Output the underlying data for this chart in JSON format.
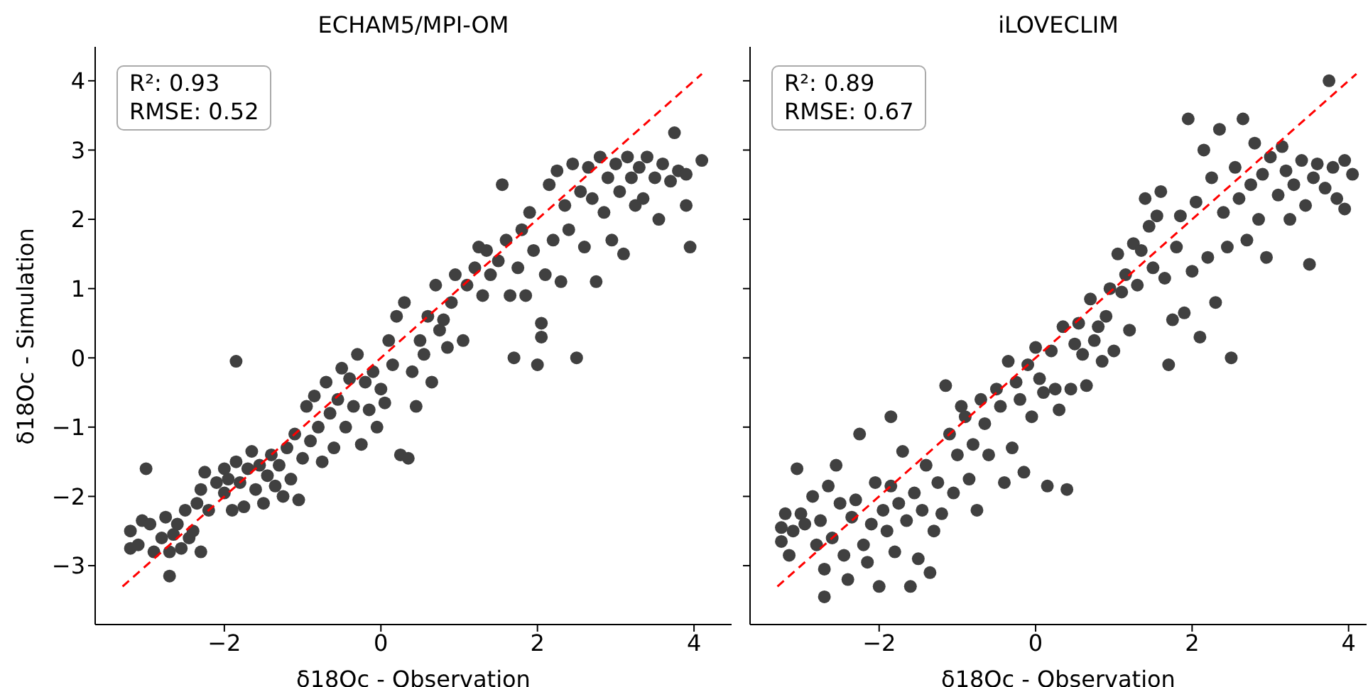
{
  "chart_data": [
    {
      "type": "scatter",
      "title": "ECHAM5/MPI-OM",
      "xlabel": "δ18Oc - Observation",
      "ylabel": "δ18Oc - Simulation",
      "annotations": [
        "R²: 0.93",
        "RMSE: 0.52"
      ],
      "xlim": [
        -3.65,
        4.48
      ],
      "ylim": [
        -3.85,
        4.49
      ],
      "xticks": [
        {
          "value": -2,
          "label": "−2"
        },
        0,
        2,
        4
      ],
      "yticks": [
        {
          "value": -3,
          "label": "−3"
        },
        {
          "value": -2,
          "label": "−2"
        },
        {
          "value": -1,
          "label": "−1"
        },
        0,
        1,
        2,
        3,
        4
      ],
      "series": [
        {
          "marker": "circle",
          "color": "#404040",
          "x": [
            -3.2,
            -3.2,
            -3.1,
            -3.05,
            -3.0,
            -2.95,
            -2.9,
            -2.8,
            -2.75,
            -2.7,
            -2.7,
            -2.65,
            -2.6,
            -2.55,
            -2.5,
            -2.45,
            -2.4,
            -2.35,
            -2.3,
            -2.3,
            -2.25,
            -2.2,
            -2.1,
            -2.0,
            -2.0,
            -1.95,
            -1.9,
            -1.85,
            -1.85,
            -1.8,
            -1.75,
            -1.7,
            -1.65,
            -1.6,
            -1.55,
            -1.5,
            -1.45,
            -1.4,
            -1.35,
            -1.3,
            -1.25,
            -1.2,
            -1.15,
            -1.1,
            -1.05,
            -1.0,
            -0.95,
            -0.9,
            -0.85,
            -0.8,
            -0.75,
            -0.7,
            -0.65,
            -0.6,
            -0.55,
            -0.5,
            -0.45,
            -0.4,
            -0.35,
            -0.3,
            -0.25,
            -0.2,
            -0.15,
            -0.1,
            -0.05,
            0.0,
            0.05,
            0.1,
            0.15,
            0.2,
            0.25,
            0.3,
            0.35,
            0.4,
            0.45,
            0.5,
            0.55,
            0.6,
            0.65,
            0.7,
            0.75,
            0.8,
            0.85,
            0.9,
            0.95,
            1.05,
            1.1,
            1.2,
            1.25,
            1.3,
            1.35,
            1.4,
            1.5,
            1.55,
            1.6,
            1.65,
            1.7,
            1.75,
            1.8,
            1.85,
            1.9,
            1.95,
            2.0,
            2.05,
            2.05,
            2.1,
            2.15,
            2.2,
            2.25,
            2.3,
            2.35,
            2.4,
            2.45,
            2.5,
            2.55,
            2.6,
            2.65,
            2.7,
            2.75,
            2.8,
            2.85,
            2.9,
            2.95,
            3.0,
            3.05,
            3.1,
            3.15,
            3.2,
            3.25,
            3.3,
            3.35,
            3.4,
            3.5,
            3.55,
            3.6,
            3.7,
            3.75,
            3.8,
            3.9,
            3.9,
            3.95,
            4.1
          ],
          "values": [
            -2.5,
            -2.75,
            -2.7,
            -2.35,
            -1.6,
            -2.4,
            -2.8,
            -2.6,
            -2.3,
            -2.8,
            -3.15,
            -2.55,
            -2.4,
            -2.75,
            -2.2,
            -2.6,
            -2.5,
            -2.1,
            -2.8,
            -1.9,
            -1.65,
            -2.2,
            -1.8,
            -1.95,
            -1.6,
            -1.75,
            -2.2,
            -0.05,
            -1.5,
            -1.8,
            -2.15,
            -1.6,
            -1.35,
            -1.9,
            -1.55,
            -2.1,
            -1.7,
            -1.4,
            -1.85,
            -1.55,
            -2.0,
            -1.3,
            -1.75,
            -1.1,
            -2.05,
            -1.45,
            -0.7,
            -1.2,
            -0.55,
            -1.0,
            -1.5,
            -0.35,
            -0.8,
            -1.3,
            -0.6,
            -0.15,
            -1.0,
            -0.3,
            -0.7,
            0.05,
            -1.25,
            -0.35,
            -0.75,
            -0.2,
            -1.0,
            -0.45,
            -0.65,
            0.25,
            -0.1,
            0.6,
            -1.4,
            0.8,
            -1.45,
            -0.2,
            -0.7,
            0.25,
            0.05,
            0.6,
            -0.35,
            1.05,
            0.4,
            0.55,
            0.15,
            0.8,
            1.2,
            0.25,
            1.05,
            1.3,
            1.6,
            0.9,
            1.55,
            1.2,
            1.4,
            2.5,
            1.7,
            0.9,
            0.0,
            1.3,
            1.85,
            0.9,
            2.1,
            1.55,
            -0.1,
            0.3,
            0.5,
            1.2,
            2.5,
            1.7,
            2.7,
            1.1,
            2.2,
            1.85,
            2.8,
            0.0,
            2.4,
            1.6,
            2.75,
            2.3,
            1.1,
            2.9,
            2.1,
            2.6,
            1.7,
            2.8,
            2.4,
            1.5,
            2.9,
            2.6,
            2.2,
            2.75,
            2.3,
            2.9,
            2.6,
            2.0,
            2.8,
            2.55,
            3.25,
            2.7,
            2.65,
            2.2,
            1.6,
            2.85
          ]
        },
        {
          "type": "line",
          "color": "#ff0000",
          "line_style": "dashed",
          "x": [
            -3.3,
            4.1
          ],
          "values": [
            -3.3,
            4.1
          ]
        }
      ]
    },
    {
      "type": "scatter",
      "title": "iLOVECLIM",
      "xlabel": "δ18Oc - Observation",
      "annotations": [
        "R²: 0.89",
        "RMSE: 0.67"
      ],
      "xlim": [
        -3.65,
        4.23
      ],
      "ylim": [
        -3.85,
        4.49
      ],
      "xticks": [
        {
          "value": -2,
          "label": "−2"
        },
        0,
        2,
        4
      ],
      "yticks": [
        -3,
        -2,
        -1,
        0,
        1,
        2,
        3,
        4
      ],
      "tick_labels": "x",
      "series": [
        {
          "marker": "circle",
          "color": "#404040",
          "x": [
            -3.25,
            -3.25,
            -3.2,
            -3.15,
            -3.1,
            -3.05,
            -3.0,
            -2.95,
            -2.85,
            -2.8,
            -2.75,
            -2.7,
            -2.7,
            -2.65,
            -2.6,
            -2.55,
            -2.5,
            -2.45,
            -2.4,
            -2.35,
            -2.3,
            -2.25,
            -2.2,
            -2.15,
            -2.1,
            -2.05,
            -2.0,
            -1.95,
            -1.9,
            -1.85,
            -1.85,
            -1.8,
            -1.75,
            -1.7,
            -1.65,
            -1.6,
            -1.55,
            -1.5,
            -1.45,
            -1.4,
            -1.35,
            -1.3,
            -1.25,
            -1.2,
            -1.15,
            -1.1,
            -1.05,
            -1.0,
            -0.95,
            -0.9,
            -0.85,
            -0.8,
            -0.75,
            -0.7,
            -0.65,
            -0.6,
            -0.5,
            -0.45,
            -0.4,
            -0.35,
            -0.3,
            -0.25,
            -0.2,
            -0.15,
            -0.1,
            -0.05,
            0.0,
            0.05,
            0.1,
            0.15,
            0.2,
            0.25,
            0.3,
            0.35,
            0.4,
            0.45,
            0.5,
            0.55,
            0.6,
            0.65,
            0.7,
            0.75,
            0.8,
            0.85,
            0.9,
            0.95,
            1.0,
            1.05,
            1.1,
            1.15,
            1.2,
            1.25,
            1.3,
            1.35,
            1.4,
            1.45,
            1.5,
            1.55,
            1.6,
            1.65,
            1.7,
            1.75,
            1.8,
            1.85,
            1.9,
            1.95,
            2.0,
            2.05,
            2.1,
            2.15,
            2.2,
            2.25,
            2.3,
            2.35,
            2.4,
            2.45,
            2.5,
            2.55,
            2.6,
            2.65,
            2.7,
            2.75,
            2.8,
            2.85,
            2.9,
            2.95,
            3.0,
            3.1,
            3.15,
            3.2,
            3.25,
            3.3,
            3.4,
            3.45,
            3.5,
            3.55,
            3.6,
            3.7,
            3.75,
            3.8,
            3.85,
            3.95,
            3.95,
            4.05
          ],
          "values": [
            -2.45,
            -2.65,
            -2.25,
            -2.85,
            -2.5,
            -1.6,
            -2.25,
            -2.4,
            -2.0,
            -2.7,
            -2.35,
            -3.05,
            -3.45,
            -1.85,
            -2.6,
            -1.55,
            -2.1,
            -2.85,
            -3.2,
            -2.3,
            -2.05,
            -1.1,
            -2.7,
            -2.95,
            -2.4,
            -1.8,
            -3.3,
            -2.2,
            -2.5,
            -0.85,
            -1.85,
            -2.8,
            -2.1,
            -1.35,
            -2.35,
            -3.3,
            -1.95,
            -2.9,
            -2.2,
            -1.55,
            -3.1,
            -2.5,
            -1.8,
            -2.25,
            -0.4,
            -1.1,
            -1.95,
            -1.4,
            -0.7,
            -0.85,
            -1.75,
            -1.25,
            -2.2,
            -0.6,
            -0.95,
            -1.4,
            -0.45,
            -0.7,
            -1.8,
            -0.05,
            -1.3,
            -0.35,
            -0.6,
            -1.65,
            -0.1,
            -0.85,
            0.15,
            -0.3,
            -0.5,
            -1.85,
            0.1,
            -0.45,
            -0.75,
            0.45,
            -1.9,
            -0.45,
            0.2,
            0.5,
            0.05,
            -0.4,
            0.85,
            0.25,
            0.45,
            -0.05,
            0.6,
            1.0,
            0.1,
            1.5,
            0.95,
            1.2,
            0.4,
            1.65,
            1.05,
            1.55,
            2.3,
            1.9,
            1.3,
            2.05,
            2.4,
            1.15,
            -0.1,
            0.55,
            1.6,
            2.05,
            0.65,
            3.45,
            1.25,
            2.25,
            0.3,
            3.0,
            1.45,
            2.6,
            0.8,
            3.3,
            2.1,
            1.6,
            0.0,
            2.75,
            2.3,
            3.45,
            1.7,
            2.5,
            3.1,
            2.0,
            2.65,
            1.45,
            2.9,
            2.35,
            3.05,
            2.7,
            2.0,
            2.5,
            2.85,
            2.2,
            1.35,
            2.6,
            2.8,
            2.45,
            4.0,
            2.75,
            2.3,
            2.85,
            2.15,
            2.65
          ]
        },
        {
          "type": "line",
          "color": "#ff0000",
          "line_style": "dashed",
          "x": [
            -3.3,
            4.1
          ],
          "values": [
            -3.3,
            4.1
          ]
        }
      ]
    }
  ]
}
